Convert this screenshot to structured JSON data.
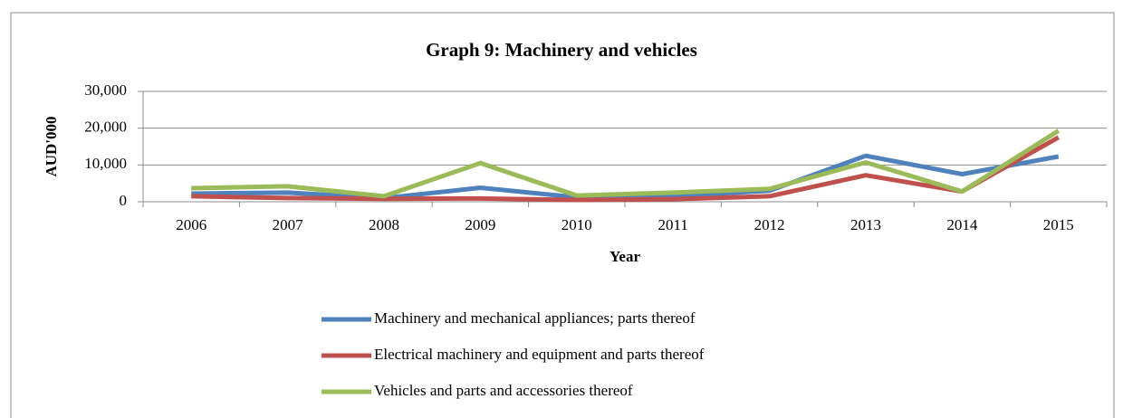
{
  "chart_data": {
    "type": "line",
    "title": "Graph 9:  Machinery and vehicles",
    "x_label": "Year",
    "y_label": "AUD'000",
    "categories": [
      "2006",
      "2007",
      "2008",
      "2009",
      "2010",
      "2011",
      "2012",
      "2013",
      "2014",
      "2015"
    ],
    "series": [
      {
        "name": "Machinery and mechanical appliances; parts thereof",
        "color": "#4f81bd",
        "values": [
          2200,
          2500,
          1000,
          3800,
          1200,
          1500,
          3000,
          12500,
          7500,
          12300
        ]
      },
      {
        "name": "Electrical machinery and equipment and parts thereof",
        "color": "#c0504d",
        "values": [
          1500,
          1000,
          800,
          900,
          500,
          700,
          1500,
          7200,
          2800,
          17500
        ]
      },
      {
        "name": "Vehicles and parts and accessories thereof",
        "color": "#9bbb59",
        "values": [
          3700,
          4200,
          1500,
          10500,
          1700,
          2500,
          3500,
          10700,
          2800,
          19300
        ]
      }
    ],
    "ylim": [
      0,
      30000
    ],
    "yticks": [
      0,
      {
        "value": 10000,
        "label": "10,000"
      },
      {
        "value": 20000,
        "label": "20,000"
      },
      {
        "value": 30000,
        "label": "30,000"
      }
    ],
    "grid": true,
    "legend": "bottom"
  }
}
